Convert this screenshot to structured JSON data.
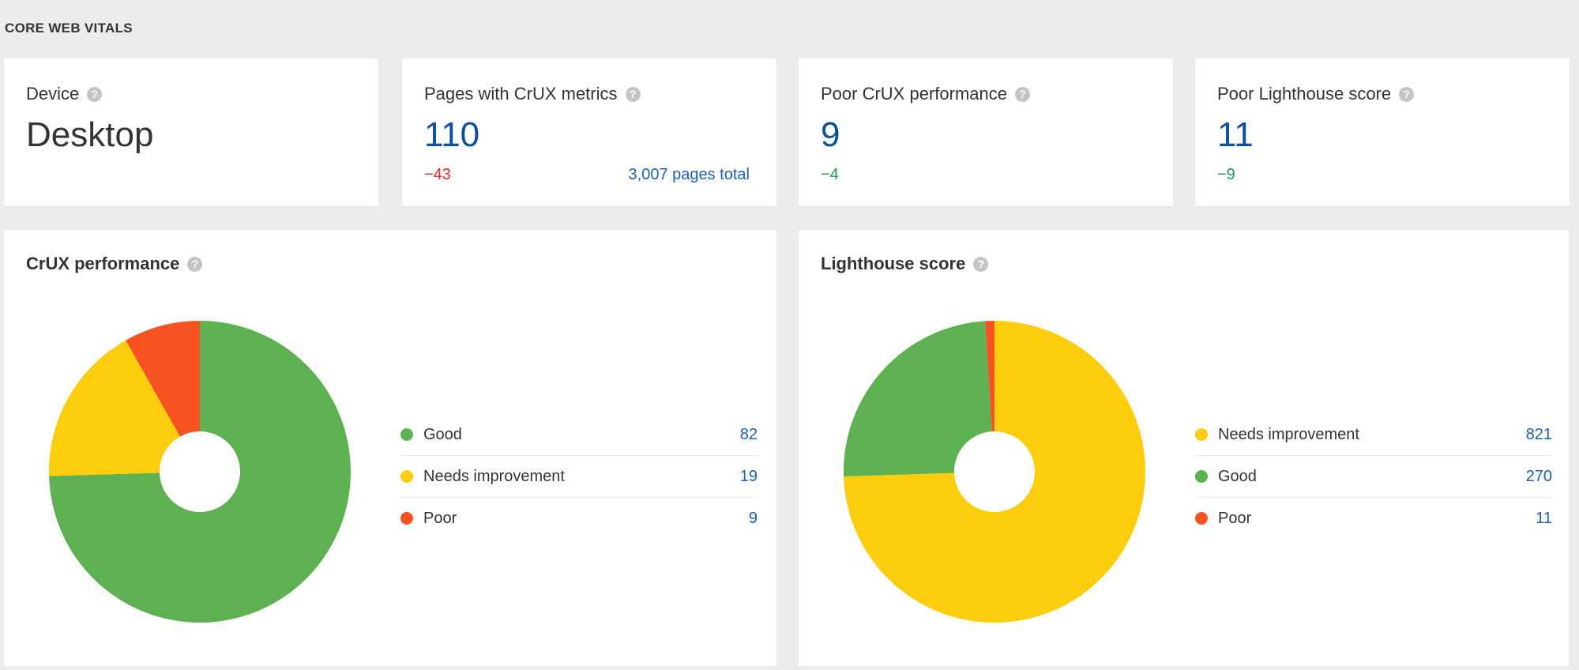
{
  "section_title": "CORE WEB VITALS",
  "cards": [
    {
      "label": "Device",
      "value": "Desktop"
    },
    {
      "label": "Pages with CrUX metrics",
      "value": "110",
      "delta": "−43",
      "total": "3,007 pages total"
    },
    {
      "label": "Poor CrUX performance",
      "value": "9",
      "delta": "−4"
    },
    {
      "label": "Poor Lighthouse score",
      "value": "11",
      "delta": "−9"
    }
  ],
  "help_icon": "?",
  "colors": {
    "good": "#5db150",
    "needs": "#fbcd0d",
    "poor": "#f75322",
    "link": "#1e5fb4"
  },
  "chart_data": [
    {
      "type": "pie",
      "title": "CrUX performance",
      "categories": [
        "Good",
        "Needs improvement",
        "Poor"
      ],
      "values": [
        82,
        19,
        9
      ],
      "colors": [
        "#5db150",
        "#fbcd0d",
        "#f75322"
      ],
      "donut": true,
      "legend": "right"
    },
    {
      "type": "pie",
      "title": "Lighthouse score",
      "categories": [
        "Needs improvement",
        "Good",
        "Poor"
      ],
      "values": [
        821,
        270,
        11
      ],
      "colors": [
        "#fbcd0d",
        "#5db150",
        "#f75322"
      ],
      "donut": true,
      "legend": "right"
    }
  ]
}
